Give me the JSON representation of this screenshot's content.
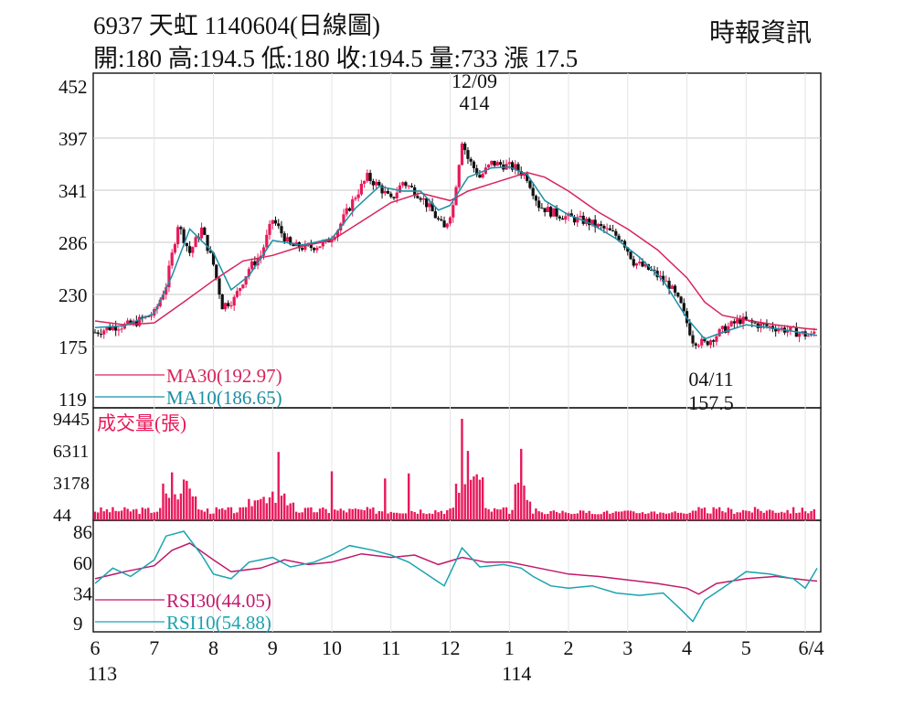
{
  "header": {
    "title": "6937  天虹 1140604(日線圖)",
    "ohlc": "開:180 高:194.5 低:180 收:194.5 量:733 漲 17.5",
    "source": "時報資訊"
  },
  "colors": {
    "up": "#e8195a",
    "down": "#111111",
    "ma30": "#d6245c",
    "ma10": "#1a8fa6",
    "rsi30": "#c2186b",
    "rsi10": "#1aa3b0",
    "volume": "#e8195a",
    "grid": "#c9c9c9"
  },
  "chart_data": [
    {
      "type": "candlestick",
      "panel": "price",
      "y_ticks": [
        "452",
        "397",
        "341",
        "286",
        "230",
        "175",
        "119"
      ],
      "ylim": [
        119,
        452
      ],
      "x_ticks": [
        "6",
        "7",
        "8",
        "9",
        "10",
        "11",
        "12",
        "1",
        "2",
        "3",
        "4",
        "5",
        "6/4"
      ],
      "x_sub_labels": {
        "6": "113",
        "1": "114"
      },
      "annotations": [
        {
          "date": "12/09",
          "value": "414",
          "kind": "high"
        },
        {
          "date": "04/11",
          "value": "157.5",
          "kind": "low"
        }
      ],
      "legend": [
        {
          "name": "MA30(192.97)",
          "color_key": "ma30"
        },
        {
          "name": "MA10(186.65)",
          "color_key": "ma10"
        }
      ],
      "close_path": [
        [
          6.0,
          190
        ],
        [
          6.3,
          196
        ],
        [
          6.6,
          198
        ],
        [
          7.0,
          210
        ],
        [
          7.2,
          240
        ],
        [
          7.4,
          305
        ],
        [
          7.6,
          275
        ],
        [
          7.8,
          300
        ],
        [
          8.0,
          262
        ],
        [
          8.15,
          218
        ],
        [
          8.35,
          225
        ],
        [
          8.6,
          258
        ],
        [
          8.8,
          272
        ],
        [
          9.0,
          310
        ],
        [
          9.3,
          282
        ],
        [
          9.6,
          280
        ],
        [
          9.9,
          285
        ],
        [
          10.1,
          300
        ],
        [
          10.4,
          335
        ],
        [
          10.6,
          355
        ],
        [
          10.8,
          345
        ],
        [
          11.0,
          330
        ],
        [
          11.2,
          350
        ],
        [
          11.5,
          335
        ],
        [
          11.7,
          318
        ],
        [
          11.9,
          300
        ],
        [
          12.05,
          325
        ],
        [
          12.2,
          395
        ],
        [
          12.3,
          375
        ],
        [
          12.5,
          355
        ],
        [
          12.7,
          370
        ],
        [
          12.9,
          368
        ],
        [
          13.1,
          365
        ],
        [
          13.3,
          355
        ],
        [
          13.5,
          325
        ],
        [
          13.7,
          318
        ],
        [
          14.0,
          312
        ],
        [
          14.3,
          308
        ],
        [
          14.6,
          300
        ],
        [
          14.9,
          290
        ],
        [
          15.1,
          265
        ],
        [
          15.4,
          255
        ],
        [
          15.7,
          240
        ],
        [
          15.9,
          218
        ],
        [
          16.1,
          182
        ],
        [
          16.3,
          178
        ],
        [
          16.6,
          192
        ],
        [
          16.9,
          203
        ],
        [
          17.2,
          198
        ],
        [
          17.5,
          195
        ],
        [
          17.8,
          191
        ],
        [
          18.1,
          186
        ],
        [
          18.2,
          194.5
        ]
      ],
      "ma30": [
        [
          6.0,
          202
        ],
        [
          6.5,
          198
        ],
        [
          7.0,
          200
        ],
        [
          7.5,
          222
        ],
        [
          8.0,
          245
        ],
        [
          8.5,
          266
        ],
        [
          9.0,
          272
        ],
        [
          9.5,
          282
        ],
        [
          10.0,
          288
        ],
        [
          10.5,
          308
        ],
        [
          11.0,
          328
        ],
        [
          11.5,
          338
        ],
        [
          12.0,
          330
        ],
        [
          12.3,
          340
        ],
        [
          12.8,
          350
        ],
        [
          13.3,
          360
        ],
        [
          13.6,
          355
        ],
        [
          14.0,
          340
        ],
        [
          14.5,
          318
        ],
        [
          15.0,
          300
        ],
        [
          15.5,
          278
        ],
        [
          16.0,
          248
        ],
        [
          16.3,
          222
        ],
        [
          16.6,
          208
        ],
        [
          17.0,
          203
        ],
        [
          17.5,
          198
        ],
        [
          18.0,
          194
        ],
        [
          18.2,
          192.97
        ]
      ],
      "ma10": [
        [
          6.0,
          195
        ],
        [
          6.5,
          197
        ],
        [
          7.0,
          210
        ],
        [
          7.3,
          250
        ],
        [
          7.6,
          300
        ],
        [
          8.0,
          275
        ],
        [
          8.3,
          235
        ],
        [
          8.6,
          250
        ],
        [
          9.0,
          288
        ],
        [
          9.5,
          283
        ],
        [
          10.0,
          290
        ],
        [
          10.4,
          322
        ],
        [
          10.8,
          345
        ],
        [
          11.2,
          340
        ],
        [
          11.5,
          340
        ],
        [
          11.8,
          320
        ],
        [
          12.0,
          325
        ],
        [
          12.3,
          355
        ],
        [
          12.7,
          365
        ],
        [
          13.0,
          366
        ],
        [
          13.3,
          358
        ],
        [
          13.6,
          330
        ],
        [
          14.0,
          315
        ],
        [
          14.4,
          305
        ],
        [
          14.8,
          290
        ],
        [
          15.2,
          270
        ],
        [
          15.6,
          245
        ],
        [
          16.0,
          205
        ],
        [
          16.3,
          183
        ],
        [
          16.6,
          190
        ],
        [
          17.0,
          198
        ],
        [
          17.5,
          194
        ],
        [
          18.0,
          189
        ],
        [
          18.2,
          186.65
        ]
      ]
    },
    {
      "type": "bar",
      "panel": "volume",
      "title": "成交量(張)",
      "y_ticks": [
        "9445",
        "6311",
        "3178",
        "44"
      ],
      "ylim": [
        44,
        9445
      ],
      "spikes": [
        [
          7.3,
          4200
        ],
        [
          7.5,
          3500
        ],
        [
          9.1,
          6200
        ],
        [
          10.0,
          4300
        ],
        [
          10.9,
          3600
        ],
        [
          11.3,
          4100
        ],
        [
          12.2,
          9445
        ],
        [
          12.3,
          6300
        ],
        [
          13.2,
          6500
        ]
      ]
    },
    {
      "type": "line",
      "panel": "rsi",
      "y_ticks": [
        "86",
        "60",
        "34",
        "9"
      ],
      "ylim": [
        9,
        86
      ],
      "legend": [
        {
          "name": "RSI30(44.05)",
          "color_key": "rsi30"
        },
        {
          "name": "RSI10(54.88)",
          "color_key": "rsi10"
        }
      ],
      "rsi30": [
        [
          6.0,
          46
        ],
        [
          6.5,
          52
        ],
        [
          7.0,
          57
        ],
        [
          7.3,
          70
        ],
        [
          7.6,
          76
        ],
        [
          8.0,
          62
        ],
        [
          8.3,
          52
        ],
        [
          8.8,
          55
        ],
        [
          9.2,
          62
        ],
        [
          9.6,
          58
        ],
        [
          10.0,
          60
        ],
        [
          10.5,
          67
        ],
        [
          11.0,
          64
        ],
        [
          11.4,
          66
        ],
        [
          11.8,
          58
        ],
        [
          12.2,
          64
        ],
        [
          12.6,
          60
        ],
        [
          13.0,
          60
        ],
        [
          13.5,
          55
        ],
        [
          14.0,
          50
        ],
        [
          14.5,
          48
        ],
        [
          15.0,
          45
        ],
        [
          15.5,
          42
        ],
        [
          16.0,
          38
        ],
        [
          16.2,
          33
        ],
        [
          16.5,
          42
        ],
        [
          17.0,
          46
        ],
        [
          17.5,
          48
        ],
        [
          18.0,
          45
        ],
        [
          18.2,
          44.05
        ]
      ],
      "rsi10": [
        [
          6.0,
          42
        ],
        [
          6.3,
          55
        ],
        [
          6.6,
          48
        ],
        [
          7.0,
          62
        ],
        [
          7.2,
          82
        ],
        [
          7.5,
          86
        ],
        [
          7.8,
          66
        ],
        [
          8.0,
          50
        ],
        [
          8.3,
          46
        ],
        [
          8.6,
          60
        ],
        [
          9.0,
          64
        ],
        [
          9.3,
          56
        ],
        [
          9.7,
          60
        ],
        [
          10.0,
          66
        ],
        [
          10.3,
          74
        ],
        [
          10.7,
          70
        ],
        [
          11.0,
          66
        ],
        [
          11.3,
          60
        ],
        [
          11.6,
          50
        ],
        [
          11.9,
          40
        ],
        [
          12.2,
          72
        ],
        [
          12.5,
          56
        ],
        [
          12.9,
          58
        ],
        [
          13.2,
          55
        ],
        [
          13.4,
          48
        ],
        [
          13.7,
          40
        ],
        [
          14.0,
          38
        ],
        [
          14.4,
          40
        ],
        [
          14.8,
          34
        ],
        [
          15.2,
          32
        ],
        [
          15.6,
          34
        ],
        [
          15.9,
          20
        ],
        [
          16.1,
          10
        ],
        [
          16.3,
          28
        ],
        [
          16.6,
          38
        ],
        [
          17.0,
          52
        ],
        [
          17.4,
          50
        ],
        [
          17.8,
          46
        ],
        [
          18.0,
          38
        ],
        [
          18.2,
          54.88
        ]
      ]
    }
  ]
}
